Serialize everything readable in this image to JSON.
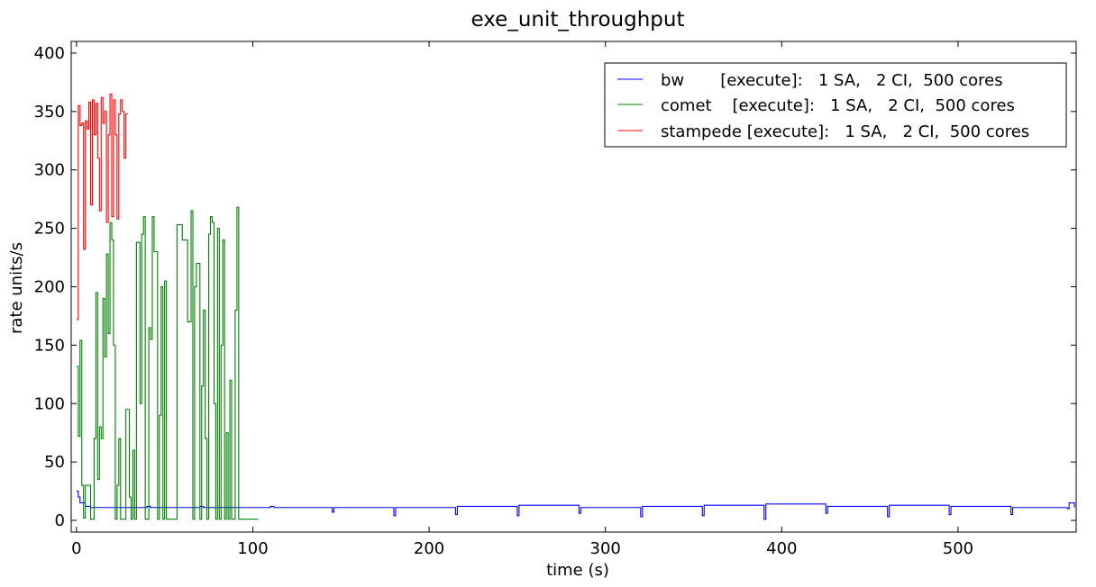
{
  "chart_data": {
    "type": "line",
    "title": "exe_unit_throughput",
    "xlabel": "time (s)",
    "ylabel": "rate units/s",
    "xlim": [
      -3,
      567
    ],
    "ylim": [
      -10,
      410
    ],
    "xticks": [
      0,
      100,
      200,
      300,
      400,
      500
    ],
    "yticks": [
      0,
      50,
      100,
      150,
      200,
      250,
      300,
      350,
      400
    ],
    "xtick_labels": [
      "0",
      "100",
      "200",
      "300",
      "400",
      "500"
    ],
    "ytick_labels": [
      "0",
      "50",
      "100",
      "150",
      "200",
      "250",
      "300",
      "350",
      "400"
    ],
    "grid": false,
    "legend_position": "top-right",
    "series": [
      {
        "name": "bw       [execute]:   1 SA,   2 CI,  500 cores",
        "color": "#0000ff",
        "step": true,
        "x": [
          0,
          1,
          2,
          5,
          8,
          40,
          42,
          70,
          72,
          110,
          112,
          145,
          146,
          180,
          181,
          215,
          216,
          250,
          251,
          285,
          286,
          320,
          321,
          355,
          356,
          390,
          391,
          425,
          426,
          460,
          461,
          495,
          496,
          530,
          531,
          562,
          563,
          566
        ],
        "y": [
          25,
          20,
          15,
          12,
          11,
          12,
          11,
          12,
          11,
          12,
          11,
          7,
          11,
          4,
          11,
          5,
          12,
          4,
          13,
          6,
          11,
          3,
          12,
          4,
          13,
          1,
          14,
          6,
          12,
          3,
          13,
          5,
          12,
          5,
          11,
          10,
          15,
          11
        ]
      },
      {
        "name": "comet    [execute]:   1 SA,   2 CI,  500 cores",
        "color": "#008000",
        "step": true,
        "x": [
          0,
          1,
          2,
          3,
          4,
          5,
          8,
          10,
          11,
          12,
          13,
          14,
          15,
          16,
          17,
          18,
          19,
          20,
          21,
          22,
          23,
          24,
          25,
          28,
          30,
          31,
          32,
          33,
          34,
          36,
          37,
          38,
          39,
          40,
          41,
          42,
          43,
          44,
          46,
          47,
          48,
          49,
          50,
          51,
          52,
          53,
          54,
          55,
          56,
          57,
          60,
          63,
          65,
          66,
          67,
          68,
          70,
          71,
          72,
          73,
          74,
          75,
          76,
          77,
          78,
          79,
          80,
          81,
          82,
          83,
          84,
          85,
          86,
          87,
          88,
          89,
          90,
          91,
          92,
          93,
          94,
          95,
          96,
          97,
          98,
          99,
          100,
          101,
          102,
          103
        ],
        "y": [
          132,
          72,
          154,
          30,
          2,
          30,
          1,
          70,
          195,
          35,
          80,
          70,
          190,
          140,
          228,
          160,
          255,
          240,
          150,
          1,
          30,
          70,
          1,
          95,
          20,
          1,
          60,
          1,
          238,
          100,
          245,
          260,
          1,
          1,
          165,
          155,
          260,
          230,
          1,
          90,
          200,
          1,
          205,
          1,
          1,
          1,
          1,
          1,
          1,
          253,
          240,
          170,
          265,
          1,
          200,
          220,
          1,
          115,
          180,
          70,
          1,
          245,
          260,
          255,
          100,
          1,
          250,
          1,
          150,
          240,
          1,
          75,
          1,
          120,
          1,
          1,
          180,
          268,
          1,
          1,
          1,
          1,
          1,
          1,
          1,
          1,
          1,
          1,
          1,
          1
        ]
      },
      {
        "name": "stampede [execute]:   1 SA,   2 CI,  500 cores",
        "color": "#ff0000",
        "step": true,
        "x": [
          0,
          1,
          2,
          3,
          4,
          5,
          6,
          7,
          8,
          9,
          10,
          11,
          12,
          13,
          14,
          15,
          16,
          17,
          18,
          19,
          20,
          21,
          22,
          23,
          24,
          25,
          26,
          27,
          28,
          29
        ],
        "y": [
          172,
          355,
          338,
          340,
          232,
          342,
          335,
          358,
          270,
          360,
          330,
          357,
          310,
          265,
          362,
          340,
          350,
          255,
          330,
          365,
          260,
          360,
          330,
          258,
          348,
          360,
          350,
          310,
          348,
          348
        ]
      }
    ]
  }
}
